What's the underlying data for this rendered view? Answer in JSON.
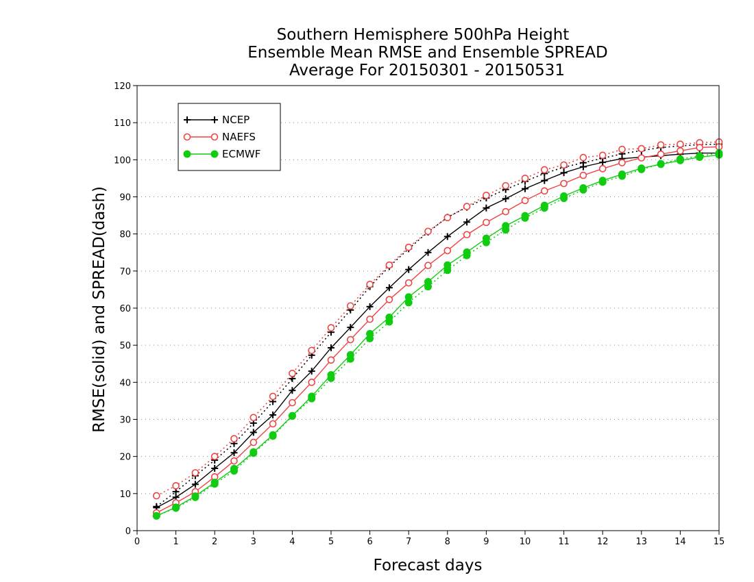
{
  "chart_data": {
    "type": "line",
    "title_lines": [
      "Southern Hemisphere 500hPa Height",
      "Ensemble Mean RMSE and Ensemble SPREAD",
      "Average For 20150301 - 20150531"
    ],
    "xlabel": "Forecast days",
    "ylabel": "RMSE(solid) and SPREAD(dash)",
    "xlim": [
      0,
      15
    ],
    "ylim": [
      0,
      120
    ],
    "x_ticks": [
      "0",
      "1",
      "2",
      "3",
      "4",
      "5",
      "6",
      "7",
      "8",
      "9",
      "10",
      "11",
      "12",
      "13",
      "14",
      "15"
    ],
    "y_ticks": [
      "0",
      "10",
      "20",
      "30",
      "40",
      "50",
      "60",
      "70",
      "80",
      "90",
      "100",
      "110",
      "120"
    ],
    "grid": "horizontal dotted",
    "legend_position": "top-left",
    "x": [
      0.5,
      1,
      1.5,
      2,
      2.5,
      3,
      3.5,
      4,
      4.5,
      5,
      5.5,
      6,
      6.5,
      7,
      7.5,
      8,
      8.5,
      9,
      9.5,
      10,
      10.5,
      11,
      11.5,
      12,
      12.5,
      13,
      13.5,
      14,
      14.5,
      15
    ],
    "series": [
      {
        "name": "NCEP",
        "color": "#000000",
        "marker": "plus",
        "rmse": [
          6.2,
          9,
          12.5,
          16.8,
          21,
          26.5,
          31.2,
          37.8,
          43,
          49.3,
          54.8,
          60.4,
          65.5,
          70.4,
          75,
          79.3,
          83.2,
          87,
          89.5,
          92.2,
          94.4,
          96.5,
          98.1,
          99.3,
          100.3,
          100.7,
          101.1,
          101.5,
          101.8,
          101.8
        ],
        "spread": [
          6.5,
          10.5,
          14.8,
          19,
          23.5,
          29,
          34.8,
          41,
          47.3,
          53.5,
          59.5,
          65.8,
          71.2,
          76,
          80.5,
          84.5,
          87.2,
          89.7,
          92,
          94.2,
          96.3,
          98,
          99.2,
          100.4,
          101.6,
          102.5,
          103.3,
          103.7,
          104.1,
          104.2
        ]
      },
      {
        "name": "NAEFS",
        "color": "#ee4444",
        "marker": "open-circle",
        "rmse": [
          4.8,
          7.5,
          10.5,
          14.5,
          18.8,
          23.8,
          28.8,
          34.5,
          40,
          46,
          51.5,
          57,
          62.3,
          66.8,
          71.5,
          75.5,
          79.8,
          83.1,
          86,
          89,
          91.6,
          93.6,
          95.8,
          97.6,
          99.2,
          100.5,
          101.5,
          102.4,
          103.3,
          103.5
        ],
        "spread": [
          9.4,
          12.1,
          15.6,
          20,
          24.8,
          30.5,
          36.2,
          42.4,
          48.6,
          54.7,
          60.6,
          66.4,
          71.6,
          76.4,
          80.7,
          84.4,
          87.4,
          90.4,
          93,
          95,
          97.3,
          98.6,
          100.6,
          101.2,
          102.8,
          103,
          104,
          104.2,
          104.6,
          104.8
        ]
      },
      {
        "name": "ECMWF",
        "color": "#11cc11",
        "marker": "filled-circle",
        "rmse": [
          4,
          6.3,
          9.3,
          13,
          16.7,
          21.2,
          25.8,
          31,
          36.2,
          42,
          47.4,
          53.1,
          57.5,
          63,
          67.1,
          71.6,
          75.1,
          78.8,
          82.2,
          84.9,
          87.7,
          90.2,
          92.4,
          94.4,
          96.1,
          97.7,
          98.8,
          99.8,
          100.7,
          101.3
        ],
        "spread": [
          4,
          6.1,
          9,
          12.6,
          16.1,
          20.9,
          25.5,
          30.9,
          35.6,
          41.1,
          46.3,
          51.8,
          56.3,
          61.5,
          65.8,
          70.2,
          74.2,
          77.7,
          81.1,
          84.3,
          87,
          89.6,
          91.9,
          94,
          95.6,
          97.4,
          98.9,
          100.2,
          101,
          101.8
        ]
      }
    ]
  }
}
